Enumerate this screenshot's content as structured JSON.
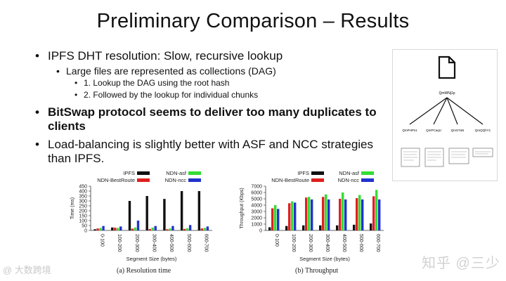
{
  "slide": {
    "title": "Preliminary Comparison – Results",
    "bullets": {
      "b1": "IPFS DHT resolution: Slow, recursive lookup",
      "b1_sub": "Large files are represented as collections (DAG)",
      "b1_sub_1": "1. Lookup the DAG using the root hash",
      "b1_sub_2": "2. Followed by the lookup for individual chunks",
      "b2": "BitSwap protocol seems to deliver too many duplicates to clients",
      "b3": "Load-balancing is slightly better with ASF and NCC strategies than IPFS."
    }
  },
  "dag": {
    "root_label": "QmWNj1p",
    "children": [
      "QmPHPs1",
      "QmPCaqU",
      "QmS7aN",
      "QmQQhY1"
    ]
  },
  "colors": {
    "IPFS": "#111111",
    "NDN-BestRoute": "#e02020",
    "NDN-asf": "#33dd33",
    "NDN-ncc": "#2233cc"
  },
  "chart_data": [
    {
      "type": "bar",
      "caption": "(a) Resolution time",
      "xlabel": "Segment Size (bytes)",
      "ylabel": "Time (ms)",
      "ylim": [
        0,
        450
      ],
      "yticks": [
        0,
        50,
        100,
        150,
        200,
        250,
        300,
        350,
        400,
        450
      ],
      "categories": [
        "0-100",
        "100-200",
        "200-300",
        "300-400",
        "400-500",
        "500-600",
        "600-700"
      ],
      "legend_position": "top",
      "series": [
        {
          "name": "IPFS",
          "values": [
            12,
            30,
            300,
            350,
            320,
            400,
            400
          ]
        },
        {
          "name": "NDN-BestRoute",
          "values": [
            20,
            28,
            18,
            15,
            12,
            15,
            20
          ]
        },
        {
          "name": "NDN-asf",
          "values": [
            25,
            25,
            30,
            28,
            20,
            22,
            25
          ]
        },
        {
          "name": "NDN-ncc",
          "values": [
            45,
            40,
            100,
            45,
            45,
            55,
            40
          ]
        }
      ]
    },
    {
      "type": "bar",
      "caption": "(b) Throughput",
      "xlabel": "Segment Size (bytes)",
      "ylabel": "Throughput (Kbps)",
      "ylim": [
        0,
        7000
      ],
      "yticks": [
        0,
        1000,
        2000,
        3000,
        4000,
        5000,
        6000,
        7000
      ],
      "categories": [
        "0-100",
        "100-200",
        "200-300",
        "300-400",
        "400-500",
        "500-600",
        "600-700"
      ],
      "legend_position": "top",
      "series": [
        {
          "name": "IPFS",
          "values": [
            500,
            700,
            800,
            800,
            800,
            900,
            1100
          ]
        },
        {
          "name": "NDN-BestRoute",
          "values": [
            3500,
            4300,
            5200,
            5300,
            5000,
            5100,
            5400
          ]
        },
        {
          "name": "NDN-asf",
          "values": [
            4000,
            4600,
            5300,
            5700,
            6000,
            5600,
            6400
          ]
        },
        {
          "name": "NDN-ncc",
          "values": [
            3400,
            4400,
            4900,
            4900,
            4900,
            4900,
            4900
          ]
        }
      ]
    }
  ],
  "watermarks": {
    "left": "@ 大数跨境",
    "right": "知乎 @三少"
  }
}
